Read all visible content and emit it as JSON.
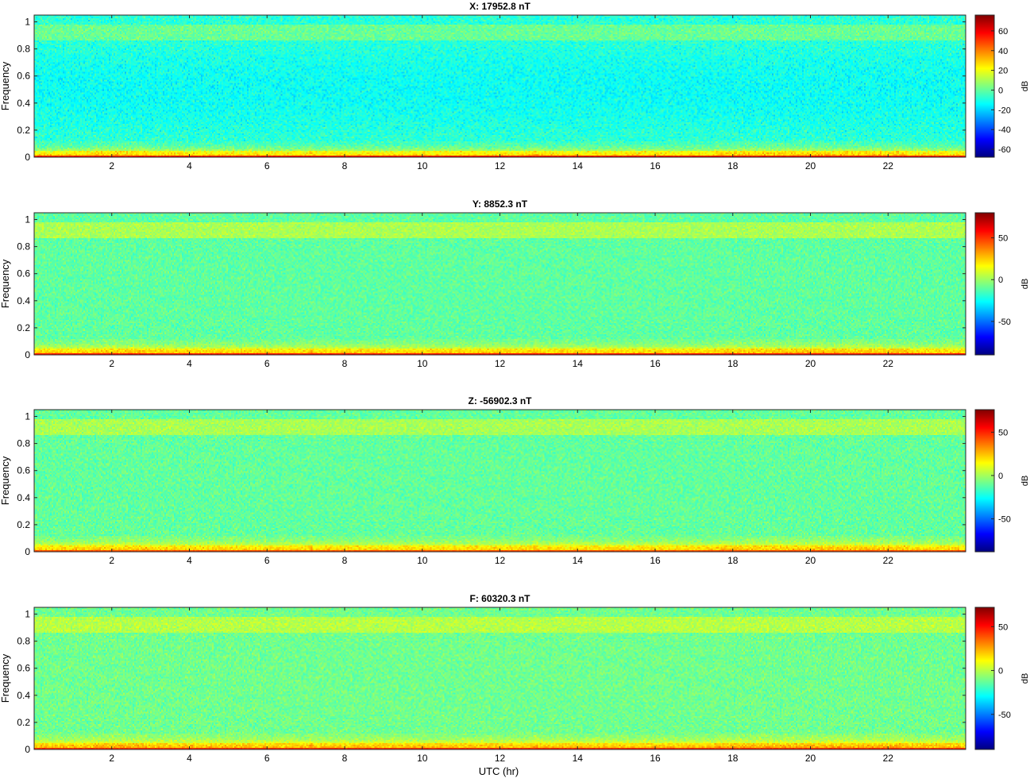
{
  "figure": {
    "xlabel": "UTC (hr)",
    "colormap": "jet",
    "colormap_stops": [
      "#000080",
      "#0000ff",
      "#00ffff",
      "#ffff00",
      "#ff0000",
      "#800000"
    ]
  },
  "chart_data": [
    {
      "type": "heatmap",
      "title": "X: 17952.8 nT",
      "xlabel": "",
      "ylabel": "Frequency",
      "xlim": [
        0,
        24
      ],
      "ylim": [
        0,
        1.05
      ],
      "xticks": [
        2,
        4,
        6,
        8,
        10,
        12,
        14,
        16,
        18,
        20,
        22
      ],
      "yticks": [
        0,
        0.2,
        0.4,
        0.6,
        0.8,
        1
      ],
      "colorbar": {
        "label": "dB",
        "clim": [
          -68,
          76
        ],
        "ticks": [
          -60,
          -40,
          -20,
          0,
          20,
          40,
          60
        ]
      },
      "profile": {
        "dc_db": 72,
        "lowfreq_db": 35,
        "midband_db": -12,
        "topband_db": 0
      }
    },
    {
      "type": "heatmap",
      "title": "Y: 8852.3 nT",
      "xlabel": "",
      "ylabel": "Frequency",
      "xlim": [
        0,
        24
      ],
      "ylim": [
        0,
        1.05
      ],
      "xticks": [
        2,
        4,
        6,
        8,
        10,
        12,
        14,
        16,
        18,
        20,
        22
      ],
      "yticks": [
        0,
        0.2,
        0.4,
        0.6,
        0.8,
        1
      ],
      "colorbar": {
        "label": "dB",
        "clim": [
          -90,
          80
        ],
        "ticks": [
          -50,
          0,
          50
        ]
      },
      "profile": {
        "dc_db": 75,
        "lowfreq_db": 35,
        "midband_db": -12,
        "topband_db": 5
      }
    },
    {
      "type": "heatmap",
      "title": "Z: -56902.3 nT",
      "xlabel": "",
      "ylabel": "Frequency",
      "xlim": [
        0,
        24
      ],
      "ylim": [
        0,
        1.05
      ],
      "xticks": [
        2,
        4,
        6,
        8,
        10,
        12,
        14,
        16,
        18,
        20,
        22
      ],
      "yticks": [
        0,
        0.2,
        0.4,
        0.6,
        0.8,
        1
      ],
      "colorbar": {
        "label": "dB",
        "clim": [
          -88,
          76
        ],
        "ticks": [
          -50,
          0,
          50
        ]
      },
      "profile": {
        "dc_db": 60,
        "lowfreq_db": 32,
        "midband_db": -12,
        "topband_db": 3
      }
    },
    {
      "type": "heatmap",
      "title": "F: 60320.3 nT",
      "xlabel": "UTC (hr)",
      "ylabel": "Frequency",
      "xlim": [
        0,
        24
      ],
      "ylim": [
        0,
        1.05
      ],
      "xticks": [
        2,
        4,
        6,
        8,
        10,
        12,
        14,
        16,
        18,
        20,
        22
      ],
      "yticks": [
        0,
        0.2,
        0.4,
        0.6,
        0.8,
        1
      ],
      "colorbar": {
        "label": "dB",
        "clim": [
          -90,
          72
        ],
        "ticks": [
          -50,
          0,
          50
        ]
      },
      "profile": {
        "dc_db": 62,
        "lowfreq_db": 33,
        "midband_db": -12,
        "topband_db": 3
      }
    }
  ]
}
